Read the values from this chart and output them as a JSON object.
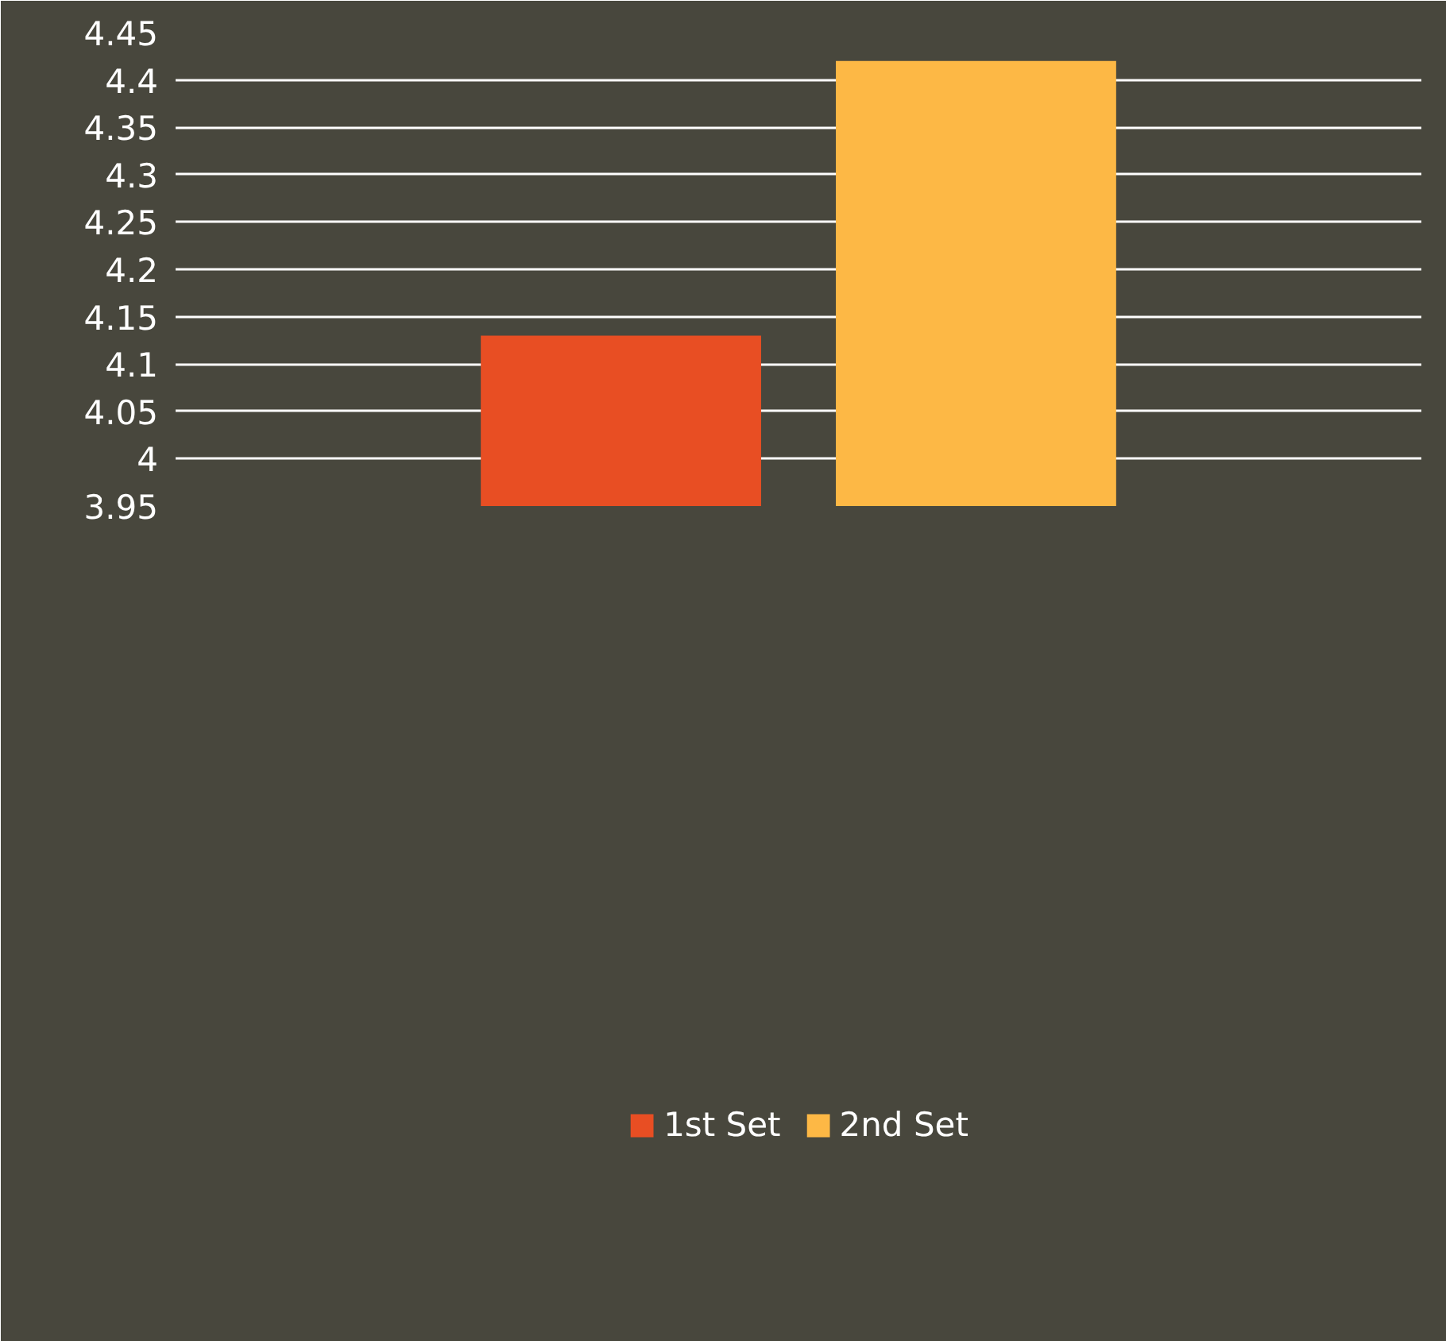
{
  "chart_data": {
    "type": "bar",
    "categories": [
      null
    ],
    "series": [
      {
        "name": "1st Set",
        "color": "#e84e23",
        "values": [
          4.13
        ]
      },
      {
        "name": "2nd Set",
        "color": "#fdb845",
        "values": [
          4.42
        ]
      }
    ],
    "ylim": [
      3.95,
      4.45
    ],
    "yticks": [
      3.95,
      4,
      4.05,
      4.1,
      4.15,
      4.2,
      4.25,
      4.3,
      4.35,
      4.4,
      4.45
    ],
    "grid": "y",
    "legend": "bottom"
  }
}
